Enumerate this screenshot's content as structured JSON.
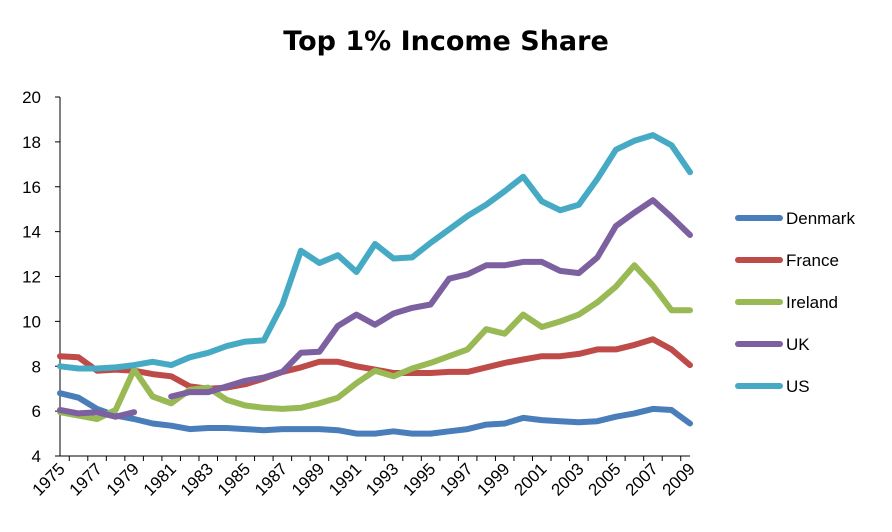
{
  "chart_data": {
    "type": "line",
    "title": "Top 1% Income Share",
    "xlabel": "",
    "ylabel": "",
    "ylim": [
      4,
      20
    ],
    "yticks": [
      "4",
      "6",
      "8",
      "10",
      "12",
      "14",
      "16",
      "18",
      "20"
    ],
    "xticks": [
      "1975",
      "1977",
      "1979",
      "1981",
      "1983",
      "1985",
      "1987",
      "1989",
      "1991",
      "1993",
      "1995",
      "1997",
      "1999",
      "2001",
      "2003",
      "2005",
      "2007",
      "2009"
    ],
    "legend_position": "right",
    "x": [
      1975,
      1976,
      1977,
      1978,
      1979,
      1980,
      1981,
      1982,
      1983,
      1984,
      1985,
      1986,
      1987,
      1988,
      1989,
      1990,
      1991,
      1992,
      1993,
      1994,
      1995,
      1996,
      1997,
      1998,
      1999,
      2000,
      2001,
      2002,
      2003,
      2004,
      2005,
      2006,
      2007,
      2008,
      2009
    ],
    "series": [
      {
        "name": "Denmark",
        "color": "#4a7ebb",
        "values": [
          6.8,
          6.6,
          6.1,
          5.8,
          5.65,
          5.45,
          5.35,
          5.2,
          5.25,
          5.25,
          5.2,
          5.15,
          5.2,
          5.2,
          5.2,
          5.15,
          5.0,
          5.0,
          5.1,
          5.0,
          5.0,
          5.1,
          5.2,
          5.4,
          5.45,
          5.7,
          5.6,
          5.55,
          5.5,
          5.55,
          5.75,
          5.9,
          6.1,
          6.05,
          5.45
        ]
      },
      {
        "name": "France",
        "color": "#be4b48",
        "values": [
          8.45,
          8.4,
          7.8,
          7.85,
          7.8,
          7.65,
          7.55,
          7.1,
          7.0,
          7.05,
          7.2,
          7.45,
          7.75,
          7.95,
          8.2,
          8.2,
          8.0,
          7.85,
          7.7,
          7.7,
          7.7,
          7.75,
          7.75,
          7.95,
          8.15,
          8.3,
          8.45,
          8.45,
          8.55,
          8.75,
          8.75,
          8.95,
          9.2,
          8.75,
          8.05
        ]
      },
      {
        "name": "Ireland",
        "color": "#98b954",
        "values": [
          5.95,
          5.8,
          5.65,
          6.05,
          7.85,
          6.65,
          6.35,
          6.95,
          7.05,
          6.5,
          6.25,
          6.15,
          6.1,
          6.15,
          6.35,
          6.6,
          7.25,
          7.8,
          7.55,
          7.9,
          8.15,
          8.45,
          8.75,
          9.65,
          9.45,
          10.3,
          9.75,
          10.0,
          10.3,
          10.85,
          11.55,
          12.5,
          11.6,
          10.5,
          10.5
        ]
      },
      {
        "name": "UK",
        "color": "#7d60a0",
        "values": [
          6.05,
          5.9,
          5.95,
          5.75,
          5.95,
          null,
          6.65,
          6.85,
          6.85,
          7.1,
          7.35,
          7.5,
          7.75,
          8.6,
          8.65,
          9.8,
          10.3,
          9.85,
          10.35,
          10.6,
          10.75,
          11.9,
          12.1,
          12.5,
          12.5,
          12.65,
          12.65,
          12.25,
          12.15,
          12.85,
          14.25,
          14.85,
          15.4,
          14.65,
          13.85
        ]
      },
      {
        "name": "US",
        "color": "#46aac5",
        "values": [
          8.0,
          7.9,
          7.9,
          7.95,
          8.05,
          8.2,
          8.05,
          8.4,
          8.6,
          8.9,
          9.1,
          9.15,
          10.75,
          13.15,
          12.6,
          12.95,
          12.2,
          13.45,
          12.8,
          12.85,
          13.5,
          14.1,
          14.7,
          15.2,
          15.8,
          16.45,
          15.35,
          14.95,
          15.2,
          16.35,
          17.65,
          18.05,
          18.3,
          17.85,
          16.65
        ]
      }
    ]
  }
}
